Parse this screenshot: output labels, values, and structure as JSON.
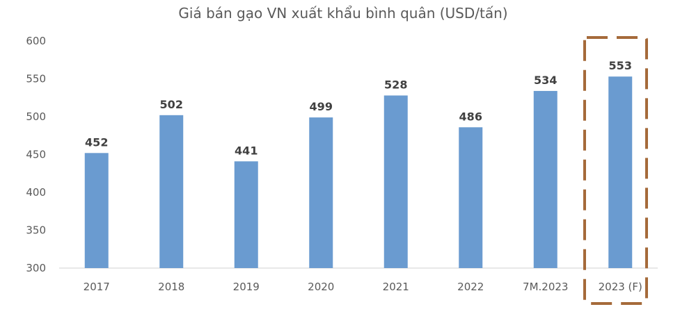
{
  "chart_data": {
    "type": "bar",
    "title": "Giá bán gạo VN xuất khẩu bình quân (USD/tấn)",
    "categories": [
      "2017",
      "2018",
      "2019",
      "2020",
      "2021",
      "2022",
      "7M.2023",
      "2023 (F)"
    ],
    "values": [
      452,
      502,
      441,
      499,
      528,
      486,
      534,
      553
    ],
    "data_labels": [
      "452",
      "502",
      "441",
      "499",
      "528",
      "486",
      "534",
      "553"
    ],
    "ylim": [
      300,
      600
    ],
    "yticks": [
      "300",
      "350",
      "400",
      "450",
      "500",
      "550",
      "600"
    ],
    "grid": false,
    "legend": "none",
    "bar_color": "#6a9bd0",
    "highlight": {
      "category": "2023 (F)",
      "style": "dashed-box",
      "color": "#a56a3a"
    }
  }
}
